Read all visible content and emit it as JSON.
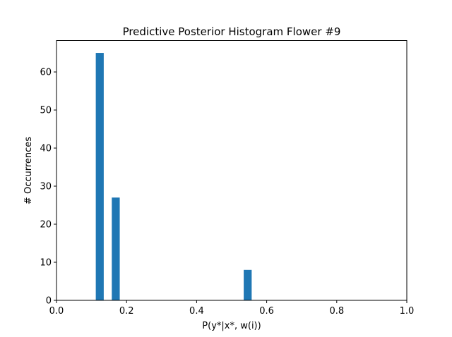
{
  "chart_data": {
    "type": "bar",
    "title": "Predictive Posterior Histogram Flower #9",
    "xlabel": "P(y*|x*, w(i))",
    "ylabel": "# Occurrences",
    "xlim": [
      0.0,
      1.0
    ],
    "ylim": [
      0,
      68.25
    ],
    "x_ticks": [
      "0.0",
      "0.2",
      "0.4",
      "0.6",
      "0.8",
      "1.0"
    ],
    "y_ticks": [
      "0",
      "10",
      "20",
      "30",
      "40",
      "50",
      "60"
    ],
    "bar_width": 0.0227,
    "bars": [
      {
        "x": 0.1235,
        "value": 65
      },
      {
        "x": 0.1692,
        "value": 27
      },
      {
        "x": 0.5458,
        "value": 8
      }
    ],
    "bar_color": "#1f77b4",
    "grid": false,
    "legend": "none"
  }
}
